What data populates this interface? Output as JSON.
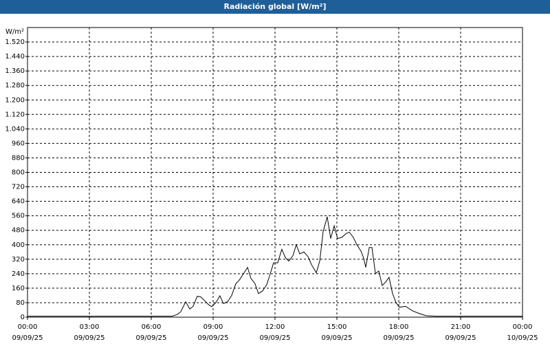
{
  "chart_data": {
    "type": "line",
    "title": "Radiación global [W/m²]",
    "y_label": "W/m²",
    "x": [
      0,
      7.0,
      7.27,
      7.43,
      7.67,
      7.87,
      8.03,
      8.23,
      8.4,
      8.6,
      8.77,
      8.93,
      9.13,
      9.33,
      9.5,
      9.7,
      9.9,
      10.1,
      10.27,
      10.47,
      10.67,
      10.83,
      11.03,
      11.2,
      11.4,
      11.6,
      11.77,
      11.93,
      12.13,
      12.33,
      12.5,
      12.67,
      12.87,
      13.03,
      13.2,
      13.4,
      13.6,
      13.77,
      14.0,
      14.17,
      14.33,
      14.53,
      14.7,
      14.87,
      15.03,
      15.23,
      15.43,
      15.6,
      15.8,
      15.97,
      16.17,
      16.3,
      16.4,
      16.57,
      16.7,
      16.87,
      17.03,
      17.2,
      17.37,
      17.53,
      17.7,
      17.87,
      18.03,
      18.33,
      18.67,
      19.0,
      19.33,
      19.83,
      24.0
    ],
    "series": [
      {
        "name": "Radiación global",
        "color": "#000000",
        "values": [
          5,
          5,
          15,
          30,
          85,
          45,
          60,
          115,
          112,
          90,
          70,
          58,
          80,
          118,
          75,
          85,
          120,
          185,
          205,
          240,
          275,
          215,
          185,
          130,
          145,
          180,
          240,
          300,
          300,
          375,
          330,
          310,
          340,
          400,
          350,
          360,
          335,
          290,
          245,
          310,
          470,
          555,
          435,
          505,
          435,
          440,
          460,
          470,
          440,
          400,
          365,
          325,
          275,
          385,
          385,
          240,
          255,
          175,
          195,
          220,
          130,
          80,
          55,
          60,
          35,
          20,
          8,
          5,
          5
        ]
      }
    ],
    "xlim": [
      0,
      24
    ],
    "xticks": [
      {
        "value": 0,
        "label": "00:00"
      },
      {
        "value": 3,
        "label": "03:00"
      },
      {
        "value": 6,
        "label": "06:00"
      },
      {
        "value": 9,
        "label": "09:00"
      },
      {
        "value": 12,
        "label": "12:00"
      },
      {
        "value": 15,
        "label": "15:00"
      },
      {
        "value": 18,
        "label": "18:00"
      },
      {
        "value": 21,
        "label": "21:00"
      },
      {
        "value": 24,
        "label": "00:00"
      }
    ],
    "xtick_dates": [
      "09/09/25",
      "09/09/25",
      "09/09/25",
      "09/09/25",
      "09/09/25",
      "09/09/25",
      "09/09/25",
      "09/09/25",
      "10/09/25"
    ],
    "ylim": [
      0,
      1600
    ],
    "yticks": [
      0,
      80,
      160,
      240,
      320,
      400,
      480,
      560,
      640,
      720,
      800,
      880,
      960,
      {
        "value": 1040,
        "label": "1.040"
      },
      {
        "value": 1120,
        "label": "1.120"
      },
      {
        "value": 1200,
        "label": "1.200"
      },
      {
        "value": 1280,
        "label": "1.280"
      },
      {
        "value": 1360,
        "label": "1.360"
      },
      {
        "value": 1440,
        "label": "1.440"
      },
      {
        "value": 1520,
        "label": "1.520"
      }
    ],
    "grid": true,
    "grid_style": "dashed"
  }
}
